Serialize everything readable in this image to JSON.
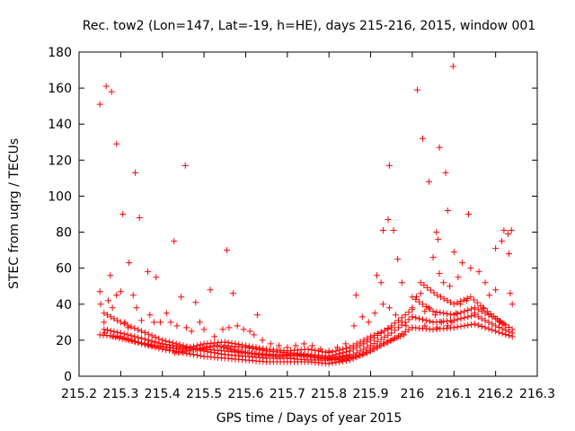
{
  "chart_data": {
    "type": "scatter",
    "title": "Rec. tow2 (Lon=147, Lat=-19, h=HE), days 215-216, 2015, window 001",
    "xlabel": "GPS time / Days of year 2015",
    "ylabel": "STEC from uqrg / TECUs",
    "xlim": [
      215.2,
      216.3
    ],
    "ylim": [
      0,
      180
    ],
    "xticks": [
      "215.2",
      "215.3",
      "215.4",
      "215.5",
      "215.6",
      "215.7",
      "215.8",
      "215.9",
      "216",
      "216.1",
      "216.2",
      "216.3"
    ],
    "yticks": [
      "0",
      "20",
      "40",
      "60",
      "80",
      "100",
      "120",
      "140",
      "160",
      "180"
    ],
    "grid": false,
    "marker": "+",
    "color": "#ff0000",
    "series": [
      {
        "points": [
          [
            215.25,
            151
          ],
          [
            215.265,
            161
          ],
          [
            215.278,
            158
          ],
          [
            215.29,
            129
          ],
          [
            215.335,
            113
          ],
          [
            215.305,
            90
          ],
          [
            215.345,
            88
          ],
          [
            215.275,
            56
          ],
          [
            215.32,
            63
          ],
          [
            215.365,
            58
          ],
          [
            215.385,
            55
          ],
          [
            215.455,
            117
          ],
          [
            215.428,
            75
          ],
          [
            215.445,
            44
          ],
          [
            215.555,
            70
          ],
          [
            215.57,
            46
          ],
          [
            215.515,
            48
          ],
          [
            215.48,
            41
          ],
          [
            215.628,
            34
          ],
          [
            215.25,
            47
          ],
          [
            215.252,
            40
          ],
          [
            215.26,
            30
          ],
          [
            215.262,
            24
          ],
          [
            215.27,
            42
          ],
          [
            215.28,
            38
          ],
          [
            215.29,
            45
          ],
          [
            215.3,
            47
          ],
          [
            215.31,
            30
          ],
          [
            215.318,
            27
          ],
          [
            215.33,
            45
          ],
          [
            215.338,
            38
          ],
          [
            215.35,
            31
          ],
          [
            215.37,
            34
          ],
          [
            215.38,
            30
          ],
          [
            215.395,
            30
          ],
          [
            215.41,
            35
          ],
          [
            215.42,
            30
          ],
          [
            215.435,
            28
          ],
          [
            215.458,
            27
          ],
          [
            215.47,
            25
          ],
          [
            215.49,
            30
          ],
          [
            215.5,
            26
          ],
          [
            215.525,
            22
          ],
          [
            215.545,
            26
          ],
          [
            215.56,
            27
          ],
          [
            215.58,
            28
          ],
          [
            215.595,
            26
          ],
          [
            215.61,
            25
          ],
          [
            215.62,
            23
          ],
          [
            215.64,
            20
          ],
          [
            215.66,
            18
          ],
          [
            215.68,
            17
          ],
          [
            215.7,
            16
          ],
          [
            215.72,
            17
          ],
          [
            215.74,
            18
          ],
          [
            215.76,
            17
          ],
          [
            215.78,
            15
          ],
          [
            215.8,
            14
          ],
          [
            215.82,
            16
          ],
          [
            215.84,
            18
          ],
          [
            215.865,
            45
          ],
          [
            215.86,
            28
          ],
          [
            215.88,
            33
          ],
          [
            215.895,
            30
          ],
          [
            215.91,
            35
          ],
          [
            215.915,
            56
          ],
          [
            215.925,
            52
          ],
          [
            215.93,
            81
          ],
          [
            215.942,
            87
          ],
          [
            215.945,
            117
          ],
          [
            215.955,
            81
          ],
          [
            215.965,
            65
          ],
          [
            215.975,
            52
          ],
          [
            215.93,
            40
          ],
          [
            215.945,
            38
          ],
          [
            215.96,
            34
          ],
          [
            215.975,
            30
          ],
          [
            215.985,
            28
          ],
          [
            216.012,
            159
          ],
          [
            216.025,
            132
          ],
          [
            216.04,
            108
          ],
          [
            216.065,
            127
          ],
          [
            216.08,
            113
          ],
          [
            216.098,
            172
          ],
          [
            216.085,
            92
          ],
          [
            216.135,
            90
          ],
          [
            216.058,
            80
          ],
          [
            216.062,
            76
          ],
          [
            216.05,
            66
          ],
          [
            216.065,
            57
          ],
          [
            216.075,
            52
          ],
          [
            216.09,
            50
          ],
          [
            216.1,
            69
          ],
          [
            216.11,
            55
          ],
          [
            216.12,
            63
          ],
          [
            216.14,
            60
          ],
          [
            216.16,
            58
          ],
          [
            216.175,
            52
          ],
          [
            216.2,
            71
          ],
          [
            216.215,
            75
          ],
          [
            216.22,
            81
          ],
          [
            216.23,
            79
          ],
          [
            216.232,
            68
          ],
          [
            216.238,
            81
          ],
          [
            216.235,
            46
          ],
          [
            216.24,
            40
          ],
          [
            216.21,
            30
          ],
          [
            216.2,
            48
          ],
          [
            216.185,
            45
          ],
          [
            216.17,
            38
          ],
          [
            216.15,
            35
          ],
          [
            216.13,
            42
          ],
          [
            216.115,
            40
          ],
          [
            216.105,
            35
          ],
          [
            216.095,
            30
          ],
          [
            216.085,
            28
          ],
          [
            216.07,
            30
          ],
          [
            216.055,
            34
          ],
          [
            216.04,
            38
          ],
          [
            216.03,
            36
          ],
          [
            216.02,
            46
          ],
          [
            216.01,
            44
          ],
          [
            216.0,
            38
          ],
          [
            216.03,
            28
          ],
          [
            216.06,
            27
          ]
        ]
      }
    ],
    "tracks": [
      {
        "x": [
          215.25,
          215.3,
          215.35,
          215.4,
          215.45,
          215.5,
          215.55,
          215.6,
          215.65,
          215.7,
          215.75,
          215.8,
          215.85,
          215.9,
          215.95,
          216.0
        ],
        "y": [
          23,
          22,
          18,
          15,
          13,
          11,
          10,
          9,
          8,
          8,
          8,
          7,
          9,
          14,
          20,
          27
        ]
      },
      {
        "x": [
          215.26,
          215.3,
          215.35,
          215.4,
          215.45,
          215.5,
          215.55,
          215.6,
          215.65,
          215.7,
          215.75,
          215.8,
          215.85,
          215.9,
          215.95,
          216.0
        ],
        "y": [
          35,
          30,
          25,
          20,
          17,
          14,
          12,
          11,
          10,
          10,
          9,
          9,
          11,
          17,
          24,
          33
        ]
      },
      {
        "x": [
          215.26,
          215.3,
          215.35,
          215.4,
          215.45,
          215.5,
          215.55,
          215.6,
          215.65,
          215.7,
          215.75,
          215.8,
          215.85
        ],
        "y": [
          26,
          24,
          21,
          18,
          16,
          15,
          14,
          13,
          12,
          12,
          11,
          10,
          12
        ]
      },
      {
        "x": [
          215.28,
          215.32,
          215.38,
          215.45,
          215.5,
          215.55,
          215.6,
          215.65,
          215.7,
          215.75,
          215.8,
          215.85,
          215.9,
          215.95
        ],
        "y": [
          22,
          20,
          17,
          15,
          18,
          19,
          17,
          15,
          14,
          15,
          13,
          16,
          22,
          27
        ]
      },
      {
        "x": [
          215.43,
          215.48,
          215.53,
          215.58,
          215.63,
          215.68,
          215.73,
          215.78,
          215.83,
          215.88,
          215.93,
          215.98
        ],
        "y": [
          13,
          15,
          17,
          14,
          12,
          11,
          12,
          10,
          9,
          12,
          18,
          23
        ]
      },
      {
        "x": [
          215.55,
          215.6,
          215.65,
          215.7,
          215.75,
          215.8,
          215.85,
          215.9,
          215.95,
          216.0
        ],
        "y": [
          17,
          16,
          14,
          13,
          12,
          11,
          14,
          20,
          28,
          37
        ]
      },
      {
        "x": [
          216.0,
          216.05,
          216.1,
          216.15,
          216.2,
          216.24
        ],
        "y": [
          27,
          26,
          27,
          29,
          25,
          22
        ]
      },
      {
        "x": [
          216.0,
          216.05,
          216.1,
          216.15,
          216.2,
          216.24
        ],
        "y": [
          33,
          30,
          31,
          34,
          28,
          24
        ]
      },
      {
        "x": [
          216.0,
          216.05,
          216.1,
          216.15,
          216.2,
          216.24
        ],
        "y": [
          44,
          36,
          34,
          38,
          32,
          26
        ]
      },
      {
        "x": [
          216.02,
          216.06,
          216.1,
          216.14,
          216.18,
          216.22
        ],
        "y": [
          52,
          45,
          40,
          44,
          36,
          29
        ]
      }
    ]
  }
}
